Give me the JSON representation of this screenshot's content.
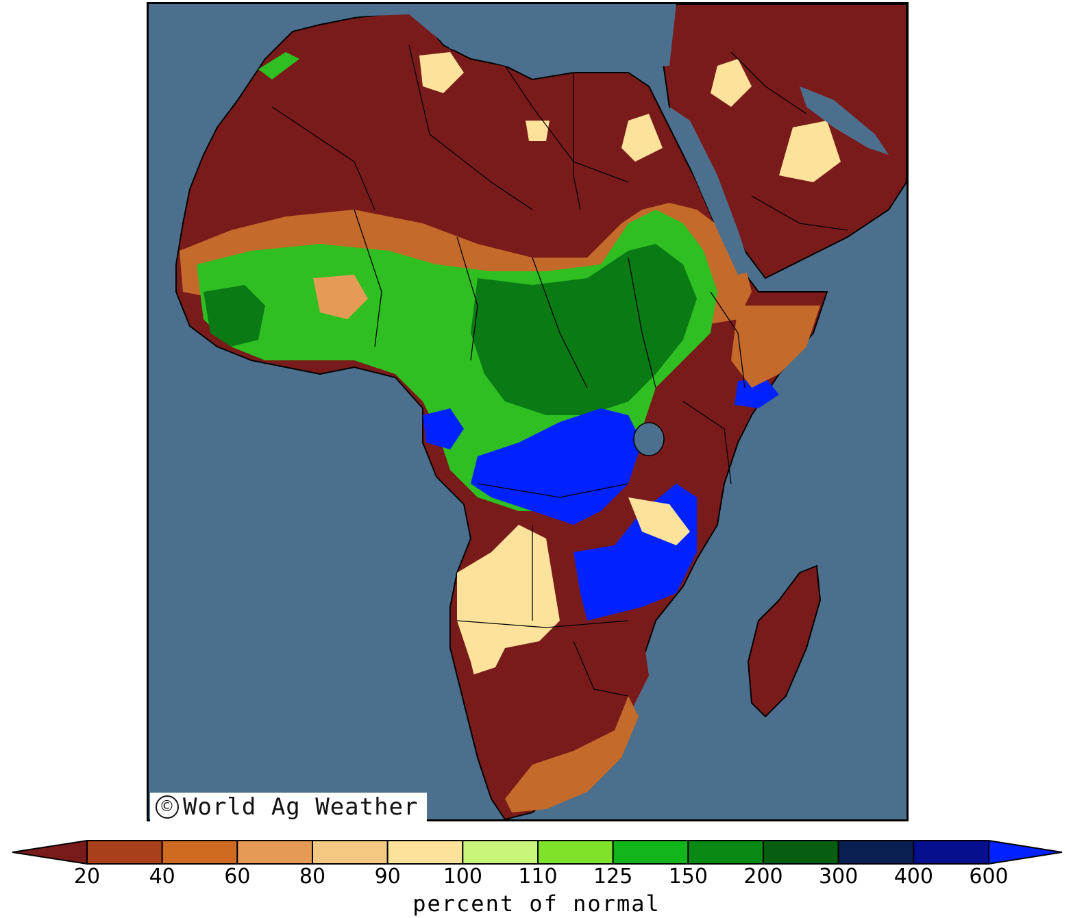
{
  "map": {
    "region": "Africa and Arabian Peninsula",
    "ocean_color": "#4d6f8e",
    "credit_symbol": "©",
    "credit_text": "World Ag Weather"
  },
  "colorbar": {
    "title": "percent of normal",
    "ticks": [
      "20",
      "40",
      "60",
      "80",
      "90",
      "100",
      "110",
      "125",
      "150",
      "200",
      "300",
      "400",
      "600"
    ],
    "low_extend_color": "#7a1b1b",
    "high_extend_color": "#0022ff",
    "bins": [
      {
        "range": "20-40",
        "color": "#a8401c"
      },
      {
        "range": "40-60",
        "color": "#cf6a22"
      },
      {
        "range": "60-80",
        "color": "#e59b55"
      },
      {
        "range": "80-90",
        "color": "#f2c882"
      },
      {
        "range": "90-100",
        "color": "#fce29a"
      },
      {
        "range": "100-110",
        "color": "#c9f57a"
      },
      {
        "range": "110-125",
        "color": "#7fe22a"
      },
      {
        "range": "125-150",
        "color": "#12b51a"
      },
      {
        "range": "150-200",
        "color": "#0a8a14"
      },
      {
        "range": "200-300",
        "color": "#075e10"
      },
      {
        "range": "300-400",
        "color": "#0a1f52"
      },
      {
        "range": "400-600",
        "color": "#06108f"
      }
    ]
  },
  "anomaly_colors": {
    "very_dry": "#7a1b1b",
    "dry": "#c46a2a",
    "near_normal": "#fce29a",
    "wet": "#2fbf22",
    "very_wet": "#0a7a14",
    "extreme_wet": "#0022ff"
  }
}
